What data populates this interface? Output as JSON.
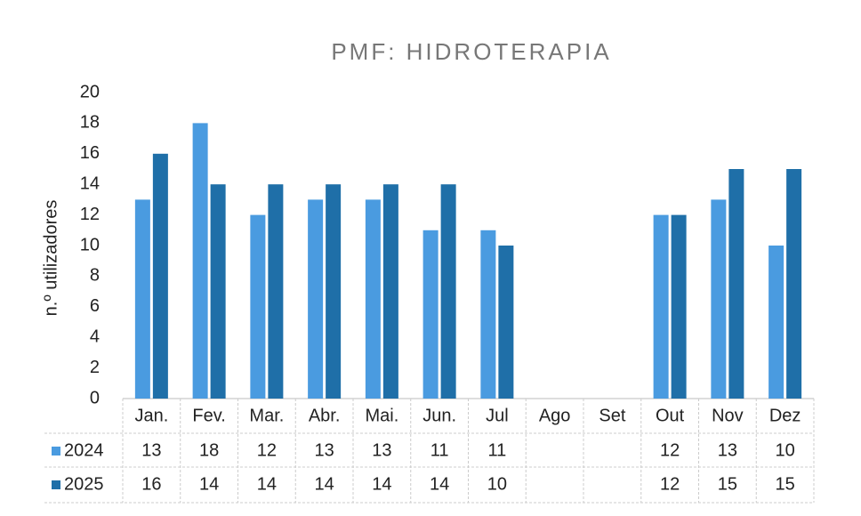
{
  "chart_data": {
    "type": "bar",
    "title": "PMF: HIDROTERAPIA",
    "y_label": "n.º utilizadores",
    "categories": [
      "Jan.",
      "Fev.",
      "Mar.",
      "Abr.",
      "Mai.",
      "Jun.",
      "Jul",
      "Ago",
      "Set",
      "Out",
      "Nov",
      "Dez"
    ],
    "series": [
      {
        "name": "2024",
        "color": "#4a9be0",
        "values": [
          13,
          18,
          12,
          13,
          13,
          11,
          11,
          null,
          null,
          12,
          13,
          10
        ]
      },
      {
        "name": "2025",
        "color": "#1f6fa8",
        "values": [
          16,
          14,
          14,
          14,
          14,
          14,
          10,
          null,
          null,
          12,
          15,
          15
        ]
      }
    ],
    "ylim": [
      0,
      20
    ],
    "yticks": [
      0,
      2,
      4,
      6,
      8,
      10,
      12,
      14,
      16,
      18,
      20
    ],
    "grid": false,
    "data_table": true
  }
}
